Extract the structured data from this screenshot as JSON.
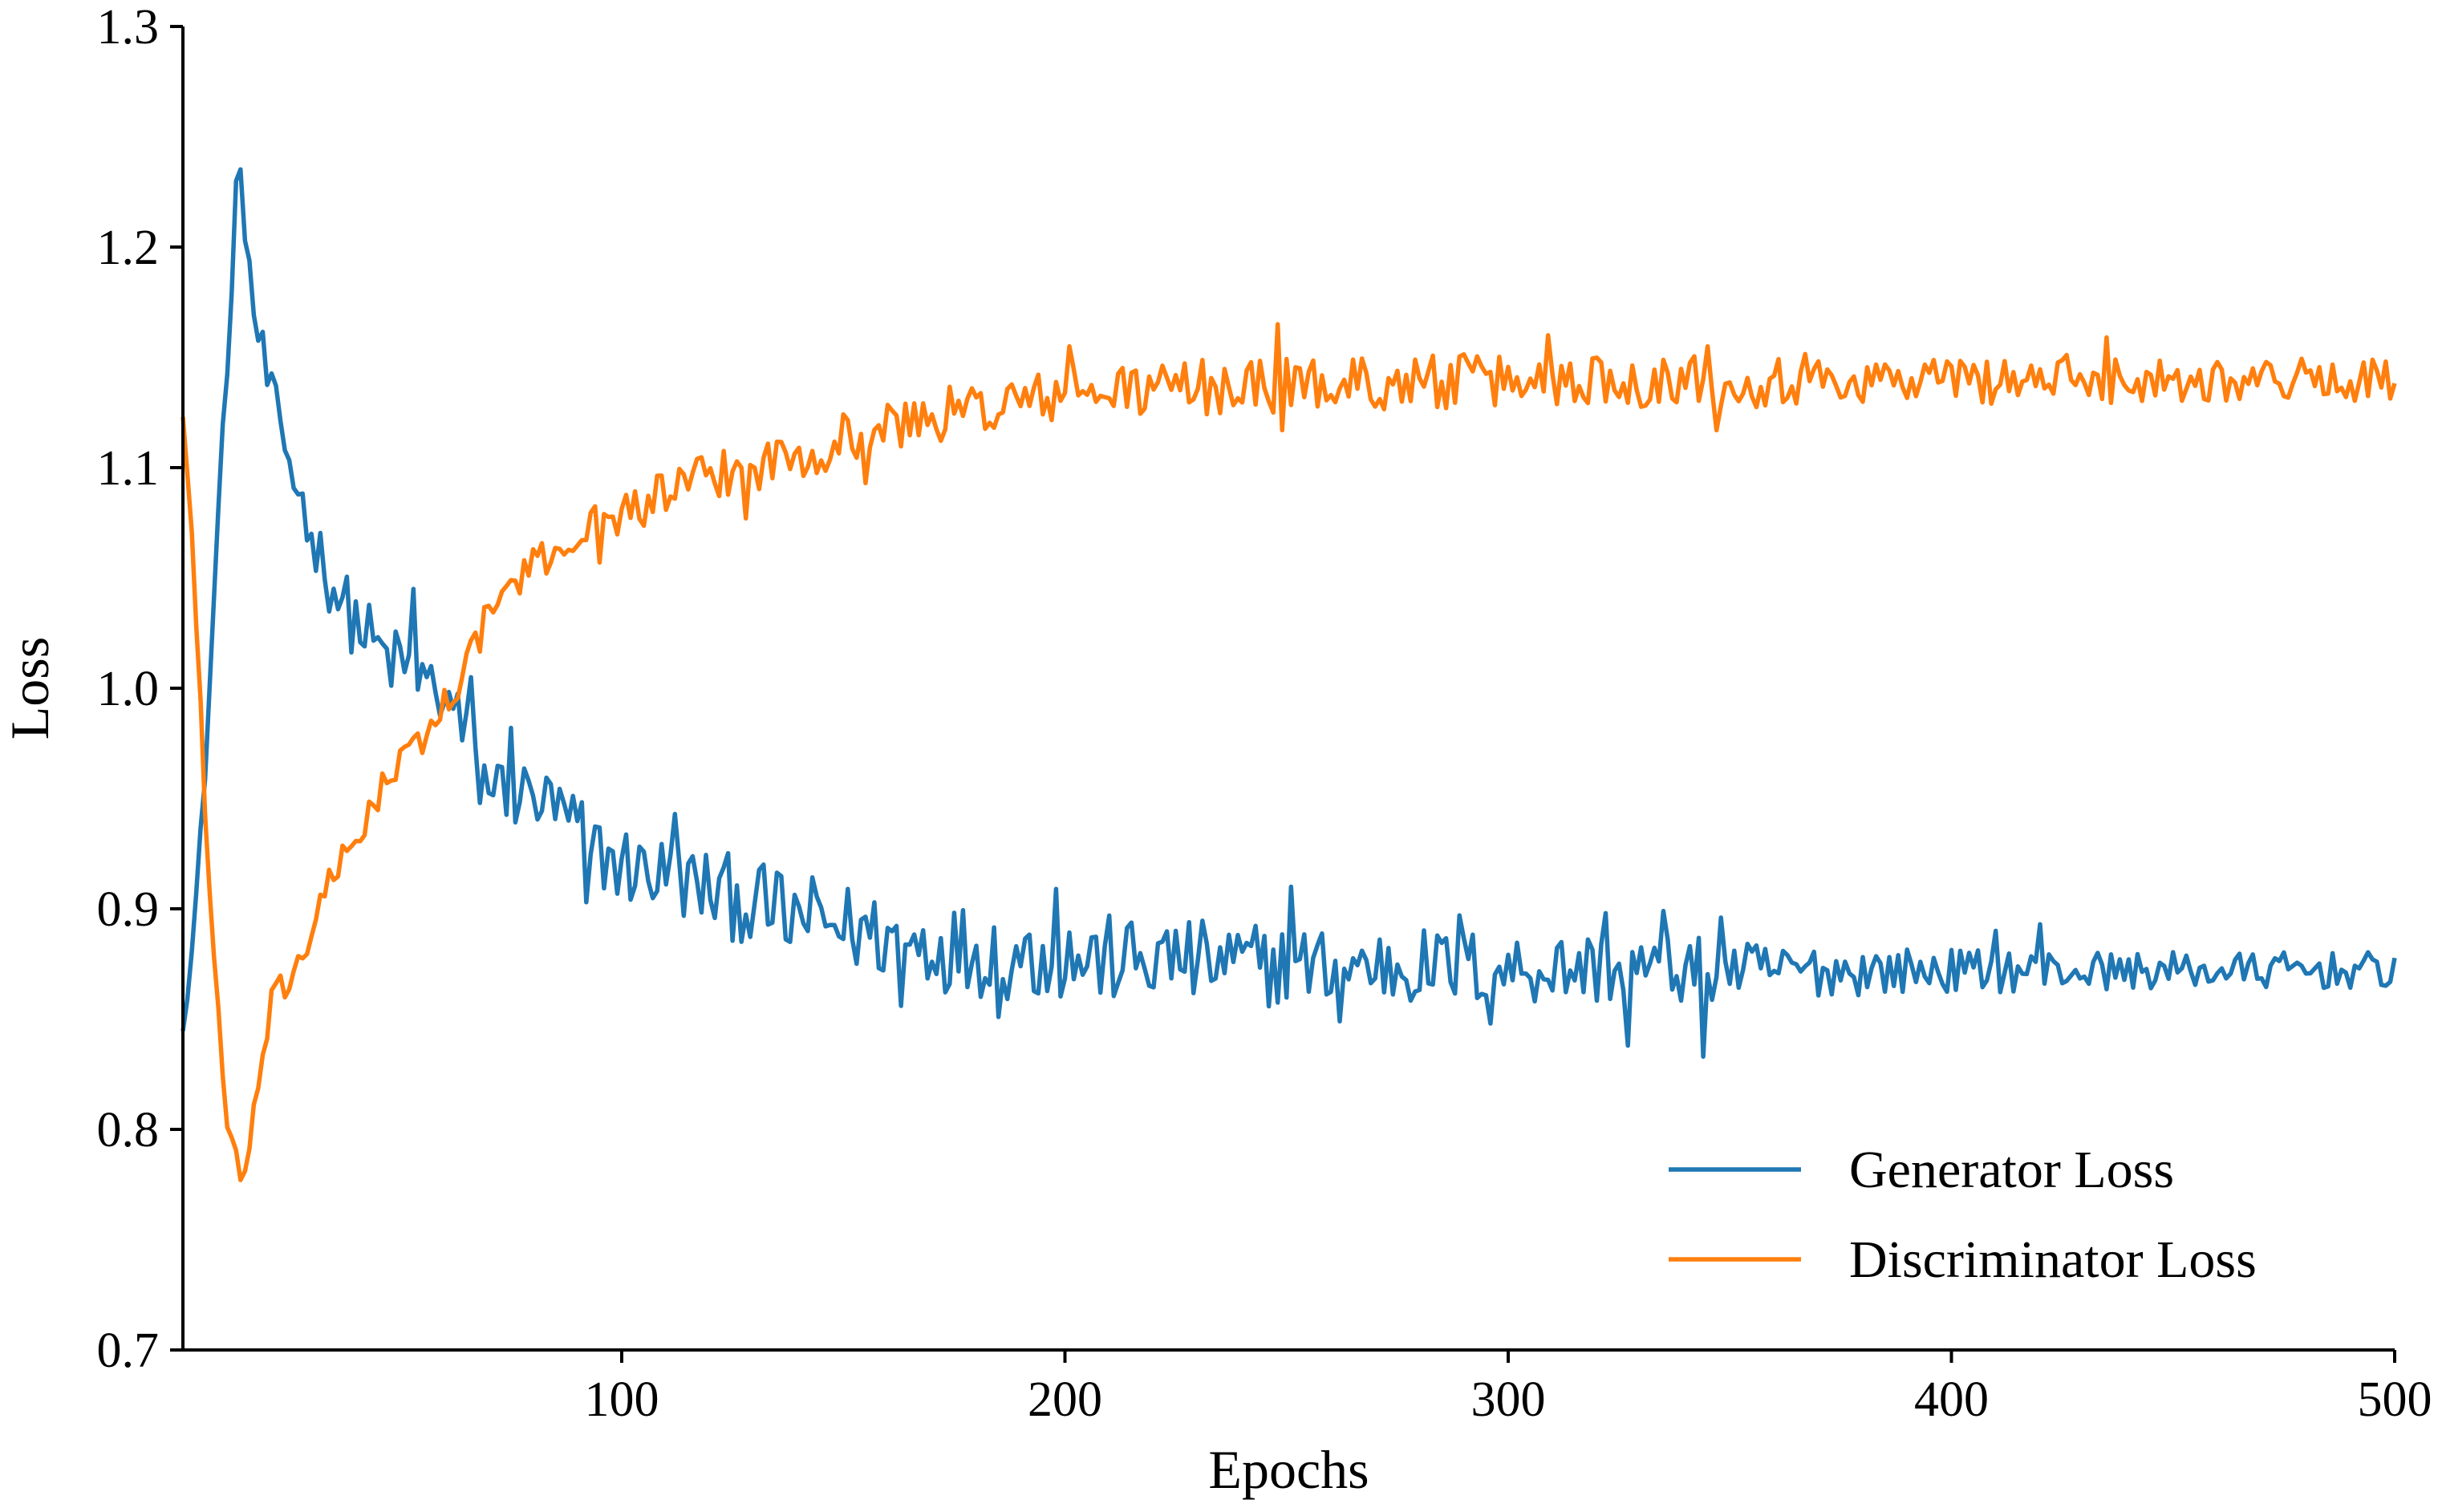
{
  "chart_data": {
    "type": "line",
    "title": "",
    "xlabel": "Epochs",
    "ylabel": "Loss",
    "xlim": [
      1,
      500
    ],
    "ylim": [
      0.7,
      1.3
    ],
    "xticks": [
      100,
      200,
      300,
      400,
      500
    ],
    "xtick_labels": [
      "100",
      "200",
      "300",
      "400",
      "500"
    ],
    "yticks": [
      0.7,
      0.8,
      0.9,
      1.0,
      1.1,
      1.2,
      1.3
    ],
    "ytick_labels": [
      "0.7",
      "0.8",
      "0.9",
      "1.0",
      "1.1",
      "1.2",
      "1.3"
    ],
    "grid": false,
    "legend_position": "lower-right",
    "series": [
      {
        "name": "Generator Loss",
        "color": "#1f77b4",
        "x": [
          1,
          3,
          5,
          7,
          9,
          11,
          13,
          14,
          15,
          17,
          19,
          21,
          24,
          27,
          30,
          34,
          38,
          42,
          46,
          50,
          54,
          58,
          62,
          65,
          68,
          72,
          76,
          80,
          85,
          90,
          95,
          100,
          110,
          120,
          130,
          140,
          150,
          160,
          170,
          180,
          190,
          200,
          220,
          240,
          260,
          280,
          300,
          320,
          340,
          360,
          380,
          400,
          420,
          440,
          460,
          480,
          500
        ],
        "baseline": [
          0.85,
          0.88,
          0.93,
          1.0,
          1.08,
          1.15,
          1.2,
          1.23,
          1.21,
          1.17,
          1.15,
          1.13,
          1.11,
          1.09,
          1.07,
          1.05,
          1.035,
          1.025,
          1.015,
          1.01,
          1.005,
          1.0,
          0.99,
          0.975,
          0.96,
          0.955,
          0.952,
          0.95,
          0.945,
          0.935,
          0.925,
          0.92,
          0.915,
          0.908,
          0.902,
          0.897,
          0.892,
          0.887,
          0.884,
          0.881,
          0.879,
          0.878,
          0.876,
          0.875,
          0.874,
          0.874,
          0.873,
          0.873,
          0.872,
          0.872,
          0.872,
          0.872,
          0.872,
          0.872,
          0.872,
          0.872,
          0.872
        ],
        "noise": [
          0.004,
          0.005,
          0.006,
          0.006,
          0.006,
          0.006,
          0.006,
          0.004,
          0.006,
          0.008,
          0.009,
          0.01,
          0.01,
          0.01,
          0.01,
          0.011,
          0.012,
          0.012,
          0.012,
          0.012,
          0.012,
          0.012,
          0.012,
          0.012,
          0.012,
          0.012,
          0.012,
          0.012,
          0.012,
          0.013,
          0.013,
          0.013,
          0.013,
          0.014,
          0.014,
          0.014,
          0.014,
          0.015,
          0.015,
          0.015,
          0.015,
          0.015,
          0.014,
          0.014,
          0.013,
          0.013,
          0.012,
          0.012,
          0.011,
          0.009,
          0.008,
          0.007,
          0.007,
          0.006,
          0.006,
          0.006,
          0.006
        ],
        "extremes": [
          [
            13,
            1.23
          ],
          [
            30,
            1.07
          ],
          [
            53,
            1.045
          ],
          [
            66,
            1.005
          ],
          [
            75,
            0.982
          ],
          [
            92,
            0.903
          ],
          [
            112,
            0.943
          ],
          [
            138,
            0.885
          ],
          [
            163,
            0.856
          ],
          [
            185,
            0.851
          ],
          [
            198,
            0.909
          ],
          [
            225,
            0.89
          ],
          [
            251,
            0.91
          ],
          [
            262,
            0.849
          ],
          [
            289,
            0.897
          ],
          [
            296,
            0.848
          ],
          [
            322,
            0.898
          ],
          [
            327,
            0.838
          ],
          [
            335,
            0.899
          ],
          [
            344,
            0.833
          ],
          [
            348,
            0.896
          ],
          [
            410,
            0.89
          ],
          [
            420,
            0.893
          ]
        ]
      },
      {
        "name": "Discriminator Loss",
        "color": "#ff7f0e",
        "x": [
          1,
          3,
          5,
          7,
          9,
          11,
          13,
          14,
          15,
          17,
          19,
          21,
          24,
          27,
          30,
          34,
          38,
          42,
          46,
          50,
          54,
          58,
          62,
          65,
          68,
          72,
          76,
          80,
          85,
          90,
          95,
          100,
          110,
          120,
          130,
          140,
          150,
          160,
          170,
          180,
          190,
          200,
          220,
          240,
          260,
          280,
          300,
          320,
          340,
          360,
          380,
          400,
          420,
          440,
          460,
          480,
          500
        ],
        "baseline": [
          1.125,
          1.07,
          0.99,
          0.91,
          0.85,
          0.8,
          0.785,
          0.778,
          0.78,
          0.81,
          0.83,
          0.855,
          0.865,
          0.875,
          0.89,
          0.91,
          0.925,
          0.94,
          0.955,
          0.965,
          0.975,
          0.985,
          1.0,
          1.01,
          1.025,
          1.04,
          1.048,
          1.055,
          1.062,
          1.07,
          1.075,
          1.08,
          1.088,
          1.095,
          1.101,
          1.107,
          1.113,
          1.118,
          1.123,
          1.127,
          1.13,
          1.133,
          1.136,
          1.137,
          1.138,
          1.139,
          1.139,
          1.14,
          1.14,
          1.14,
          1.14,
          1.14,
          1.14,
          1.14,
          1.14,
          1.14,
          1.14
        ],
        "noise": [
          0.004,
          0.005,
          0.006,
          0.006,
          0.005,
          0.004,
          0.004,
          0.003,
          0.003,
          0.004,
          0.005,
          0.006,
          0.006,
          0.006,
          0.006,
          0.006,
          0.006,
          0.006,
          0.006,
          0.006,
          0.006,
          0.006,
          0.006,
          0.006,
          0.006,
          0.006,
          0.006,
          0.006,
          0.006,
          0.007,
          0.007,
          0.007,
          0.008,
          0.008,
          0.008,
          0.009,
          0.009,
          0.009,
          0.009,
          0.009,
          0.009,
          0.009,
          0.009,
          0.009,
          0.009,
          0.009,
          0.009,
          0.009,
          0.009,
          0.009,
          0.008,
          0.008,
          0.008,
          0.008,
          0.007,
          0.007,
          0.007
        ],
        "extremes": [
          [
            14,
            0.777
          ],
          [
            95,
            1.057
          ],
          [
            128,
            1.077
          ],
          [
            155,
            1.093
          ],
          [
            201,
            1.155
          ],
          [
            248,
            1.165
          ],
          [
            249,
            1.117
          ],
          [
            309,
            1.16
          ],
          [
            345,
            1.155
          ],
          [
            347,
            1.117
          ],
          [
            435,
            1.159
          ]
        ]
      }
    ]
  }
}
